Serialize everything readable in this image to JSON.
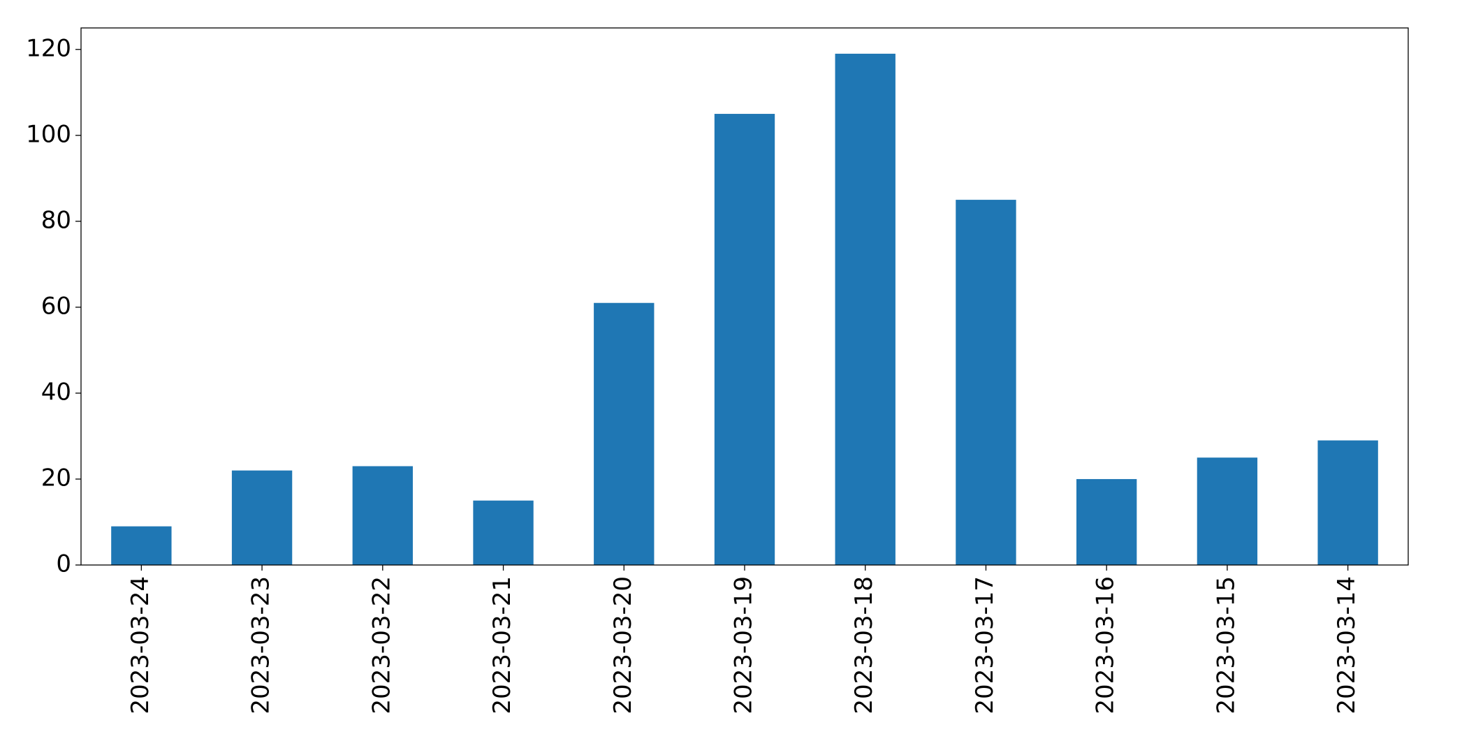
{
  "chart_data": {
    "type": "bar",
    "categories": [
      "2023-03-24",
      "2023-03-23",
      "2023-03-22",
      "2023-03-21",
      "2023-03-20",
      "2023-03-19",
      "2023-03-18",
      "2023-03-17",
      "2023-03-16",
      "2023-03-15",
      "2023-03-14"
    ],
    "values": [
      9,
      22,
      23,
      15,
      61,
      105,
      119,
      85,
      20,
      25,
      29
    ],
    "color": "#1f77b4",
    "ylim": [
      0,
      125
    ],
    "yticks": [
      0,
      20,
      40,
      60,
      80,
      100,
      120
    ],
    "grid": false
  }
}
